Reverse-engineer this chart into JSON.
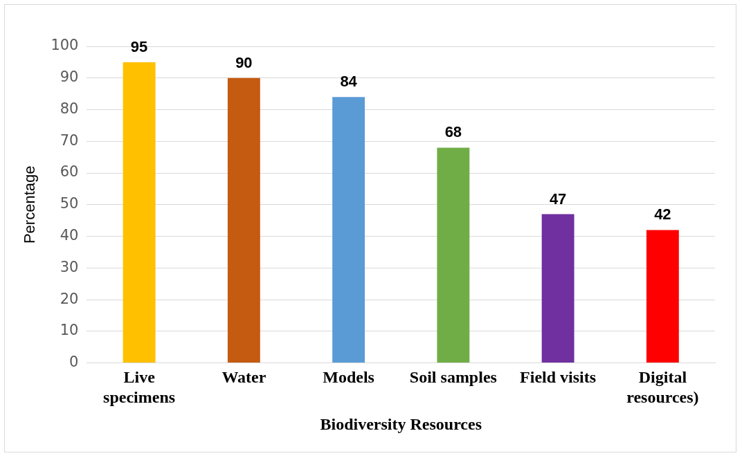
{
  "chart_data": {
    "type": "bar",
    "xlabel": "Biodiversity Resources",
    "ylabel": "Percentage",
    "categories": [
      "Live specimens",
      "Water",
      "Models",
      "Soil samples",
      "Field visits",
      "Digital resources)"
    ],
    "values": [
      95,
      90,
      84,
      68,
      47,
      42
    ],
    "colors": [
      "#ffc000",
      "#c55a11",
      "#5b9bd5",
      "#70ad47",
      "#7030a0",
      "#ff0000"
    ],
    "ylim": [
      0,
      100
    ],
    "yticks": [
      0,
      10,
      20,
      30,
      40,
      50,
      60,
      70,
      80,
      90,
      100
    ],
    "grid": "y",
    "data_labels": true,
    "legend": false
  }
}
